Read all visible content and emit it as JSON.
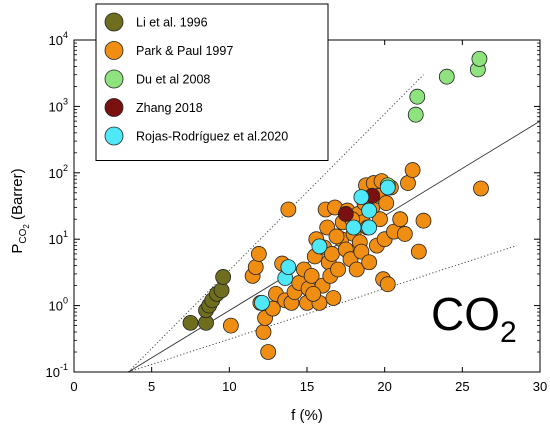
{
  "chart_data": {
    "type": "scatter",
    "xlabel": "f (%)",
    "ylabel_main": "P",
    "ylabel_sub": "CO",
    "ylabel_subsub": "2",
    "ylabel_tail": " (Barrer)",
    "annotation_main": "CO",
    "annotation_sub": "2",
    "xlim": [
      0,
      30
    ],
    "ylim": [
      0.1,
      10000
    ],
    "yscale": "log",
    "x_ticks": [
      0,
      5,
      10,
      15,
      20,
      25,
      30
    ],
    "x_tick_labels": [
      "0",
      "5",
      "10",
      "15",
      "20",
      "25",
      "30"
    ],
    "y_ticks": [
      0.1,
      1,
      10,
      100,
      1000,
      10000
    ],
    "y_tick_labels": [
      {
        "base": "10",
        "exp": "-1"
      },
      {
        "base": "10",
        "exp": "0"
      },
      {
        "base": "10",
        "exp": "1"
      },
      {
        "base": "10",
        "exp": "2"
      },
      {
        "base": "10",
        "exp": "3"
      },
      {
        "base": "10",
        "exp": "4"
      }
    ],
    "legend_position": "top-left",
    "reference_lines": [
      {
        "style": "solid",
        "points": [
          [
            3.5,
            0.1
          ],
          [
            30,
            600
          ]
        ]
      },
      {
        "style": "dotted",
        "points": [
          [
            3.5,
            0.1
          ],
          [
            22.5,
            3000
          ]
        ]
      },
      {
        "style": "dotted",
        "points": [
          [
            3.5,
            0.1
          ],
          [
            28.5,
            8
          ]
        ]
      }
    ],
    "series": [
      {
        "name": "Li et al. 1996",
        "color": "#6e6e1e",
        "points": [
          [
            7.5,
            0.55
          ],
          [
            8.5,
            0.55
          ],
          [
            8.5,
            0.85
          ],
          [
            8.7,
            1.0
          ],
          [
            8.9,
            1.2
          ],
          [
            9.2,
            1.5
          ],
          [
            9.5,
            1.7
          ],
          [
            9.6,
            2.7
          ]
        ]
      },
      {
        "name": "Park & Paul 1997",
        "color": "#ef8e12",
        "points": [
          [
            10.1,
            0.5
          ],
          [
            11.5,
            2.8
          ],
          [
            11.7,
            3.8
          ],
          [
            11.9,
            6.0
          ],
          [
            12.0,
            1.1
          ],
          [
            12.2,
            0.4
          ],
          [
            12.3,
            0.65
          ],
          [
            12.5,
            0.2
          ],
          [
            13.0,
            1.5
          ],
          [
            13.4,
            4.3
          ],
          [
            13.6,
            1.2
          ],
          [
            13.8,
            28.0
          ],
          [
            14.0,
            1.1
          ],
          [
            14.2,
            1.6
          ],
          [
            14.5,
            2.2
          ],
          [
            14.8,
            3.5
          ],
          [
            15.0,
            1.1
          ],
          [
            15.1,
            1.8
          ],
          [
            15.3,
            2.8
          ],
          [
            15.5,
            5.5
          ],
          [
            15.6,
            10.0
          ],
          [
            15.8,
            1.1
          ],
          [
            16.0,
            2.0
          ],
          [
            16.1,
            7.5
          ],
          [
            16.2,
            28.0
          ],
          [
            16.3,
            15.0
          ],
          [
            16.4,
            4.5
          ],
          [
            16.5,
            2.8
          ],
          [
            16.6,
            6.0
          ],
          [
            16.7,
            1.3
          ],
          [
            16.8,
            30.0
          ],
          [
            17.0,
            3.5
          ],
          [
            17.2,
            10.0
          ],
          [
            17.3,
            18.0
          ],
          [
            17.5,
            7.0
          ],
          [
            17.6,
            27.0
          ],
          [
            17.8,
            5.0
          ],
          [
            18.0,
            12.0
          ],
          [
            18.2,
            3.5
          ],
          [
            18.3,
            24.0
          ],
          [
            18.4,
            9.0
          ],
          [
            18.5,
            6.5
          ],
          [
            18.6,
            18.0
          ],
          [
            18.7,
            35.0
          ],
          [
            18.8,
            65.0
          ],
          [
            19.0,
            4.5
          ],
          [
            19.2,
            30.0
          ],
          [
            19.3,
            70.0
          ],
          [
            19.5,
            8.0
          ],
          [
            19.6,
            45.0
          ],
          [
            19.7,
            20.0
          ],
          [
            19.8,
            75.0
          ],
          [
            19.9,
            2.5
          ],
          [
            20.0,
            10.0
          ],
          [
            20.1,
            35.0
          ],
          [
            20.2,
            2.1
          ],
          [
            20.4,
            60.0
          ],
          [
            20.6,
            13.0
          ],
          [
            21.0,
            20.0
          ],
          [
            21.3,
            12.0
          ],
          [
            21.5,
            70.0
          ],
          [
            21.8,
            110.0
          ],
          [
            22.2,
            6.5
          ],
          [
            22.5,
            19.0
          ],
          [
            26.2,
            58.0
          ],
          [
            15.4,
            1.5
          ],
          [
            16.9,
            11.0
          ],
          [
            17.9,
            20.0
          ],
          [
            18.9,
            15.0
          ],
          [
            12.8,
            0.9
          ]
        ]
      },
      {
        "name": "Du et al 2008",
        "color": "#8ee37e",
        "points": [
          [
            22.0,
            750
          ],
          [
            22.1,
            1400
          ],
          [
            24.0,
            2800
          ],
          [
            26.0,
            3600
          ],
          [
            26.1,
            5200
          ],
          [
            20.2,
            65
          ]
        ]
      },
      {
        "name": "Zhang 2018",
        "color": "#7a1010",
        "points": [
          [
            17.5,
            24.0
          ],
          [
            19.2,
            45.0
          ]
        ]
      },
      {
        "name": "Rojas-Rodríguez et al.2020",
        "color": "#4ee8f8",
        "points": [
          [
            12.1,
            1.1
          ],
          [
            13.6,
            2.6
          ],
          [
            13.8,
            3.8
          ],
          [
            15.8,
            7.8
          ],
          [
            18.0,
            15.0
          ],
          [
            18.5,
            43.0
          ],
          [
            19.0,
            15.0
          ],
          [
            19.0,
            27.0
          ],
          [
            20.2,
            60.0
          ]
        ]
      }
    ]
  }
}
